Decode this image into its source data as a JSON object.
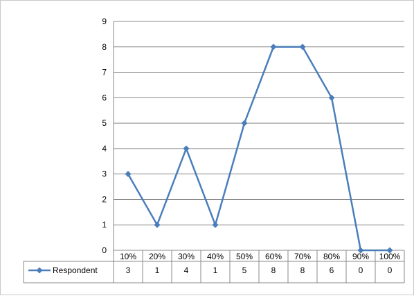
{
  "chart_data": {
    "type": "line",
    "categories": [
      "10%",
      "20%",
      "30%",
      "40%",
      "50%",
      "60%",
      "70%",
      "80%",
      "90%",
      "100%"
    ],
    "series": [
      {
        "name": "Respondent",
        "values": [
          3,
          1,
          4,
          1,
          5,
          8,
          8,
          6,
          0,
          0
        ],
        "color": "#4a7ebb"
      }
    ],
    "y_ticks": [
      "0",
      "1",
      "2",
      "3",
      "4",
      "5",
      "6",
      "7",
      "8",
      "9"
    ],
    "ylim": [
      0,
      9
    ],
    "grid": true,
    "legend": "data-table",
    "data_table": true
  }
}
